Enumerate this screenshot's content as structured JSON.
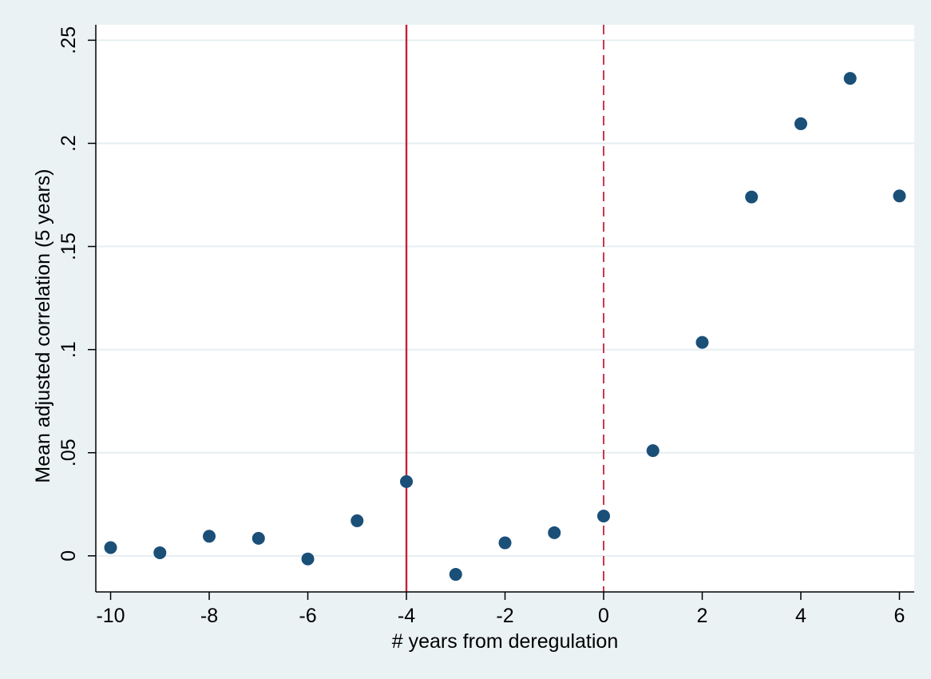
{
  "chart_data": {
    "type": "scatter",
    "title": "",
    "xlabel": "# years from deregulation",
    "ylabel": "Mean adjusted correlation (5 years)",
    "xlim": [
      -10.3,
      6.3
    ],
    "ylim": [
      -0.0175,
      0.2575
    ],
    "x_ticks": [
      -10,
      -8,
      -6,
      -4,
      -2,
      0,
      2,
      4,
      6
    ],
    "x_tick_labels": [
      "-10",
      "-8",
      "-6",
      "-4",
      "-2",
      "0",
      "2",
      "4",
      "6"
    ],
    "y_ticks": [
      0,
      0.05,
      0.1,
      0.15,
      0.2,
      0.25
    ],
    "y_tick_labels": [
      "0",
      ".05",
      ".1",
      ".15",
      ".2",
      ".25"
    ],
    "grid": true,
    "legend": "none",
    "series": [
      {
        "color": "#1a4f78",
        "points": [
          {
            "x": -10,
            "y": 0.004
          },
          {
            "x": -9,
            "y": 0.0015
          },
          {
            "x": -8,
            "y": 0.0095
          },
          {
            "x": -7,
            "y": 0.0085
          },
          {
            "x": -6,
            "y": -0.0015
          },
          {
            "x": -5,
            "y": 0.017
          },
          {
            "x": -4,
            "y": 0.036
          },
          {
            "x": -3,
            "y": -0.009
          },
          {
            "x": -2,
            "y": 0.0063
          },
          {
            "x": -1,
            "y": 0.0112
          },
          {
            "x": 0,
            "y": 0.0193
          },
          {
            "x": 1,
            "y": 0.051
          },
          {
            "x": 2,
            "y": 0.1035
          },
          {
            "x": 3,
            "y": 0.174
          },
          {
            "x": 4,
            "y": 0.2095
          },
          {
            "x": 5,
            "y": 0.2315
          },
          {
            "x": 6,
            "y": 0.1745
          }
        ]
      }
    ],
    "reference_lines": [
      {
        "x": -4,
        "style": "solid",
        "color": "#c4213a"
      },
      {
        "x": 0,
        "style": "dashed",
        "color": "#c4213a"
      }
    ],
    "colors": {
      "background": "#eaf2f3",
      "plot_background": "#ffffff",
      "grid": "#e6eef0",
      "axis": "#000000"
    }
  }
}
